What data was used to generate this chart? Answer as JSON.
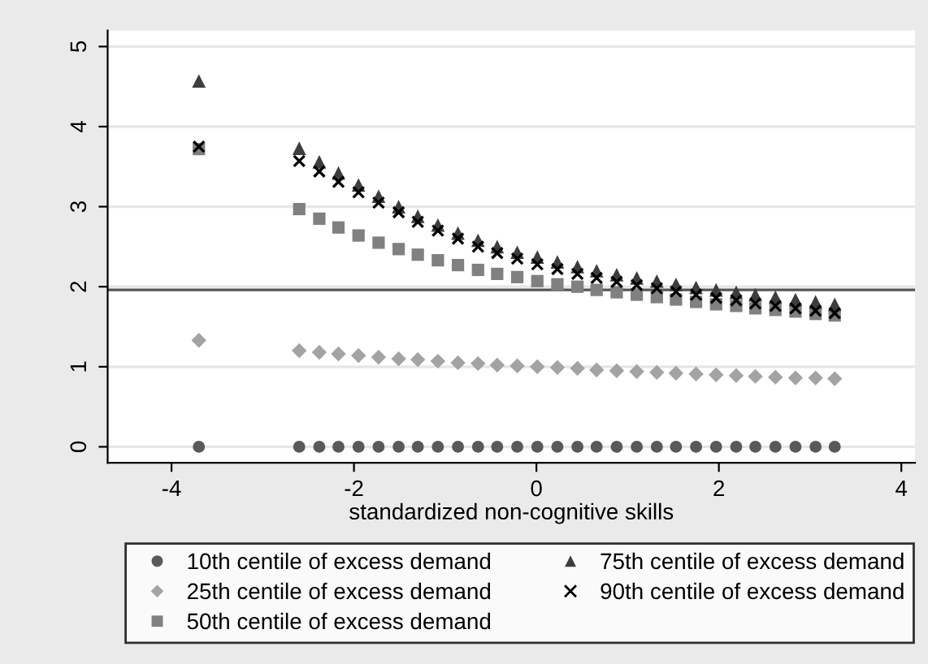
{
  "chart_data": {
    "type": "scatter",
    "xlabel": "standardized non-cognitive skills",
    "x": [
      -3.7,
      -2.6,
      -2.38,
      -2.17,
      -1.95,
      -1.73,
      -1.51,
      -1.3,
      -1.08,
      -0.86,
      -0.64,
      -0.43,
      -0.21,
      0.01,
      0.23,
      0.45,
      0.66,
      0.88,
      1.1,
      1.32,
      1.53,
      1.75,
      1.97,
      2.19,
      2.4,
      2.62,
      2.84,
      3.06,
      3.27
    ],
    "series": [
      {
        "name": "10th centile of excess demand",
        "color": "#595959",
        "marker": "circle",
        "values": [
          0,
          0,
          0,
          0,
          0,
          0,
          0,
          0,
          0,
          0,
          0,
          0,
          0,
          0,
          0,
          0,
          0,
          0,
          0,
          0,
          0,
          0,
          0,
          0,
          0,
          0,
          0,
          0,
          0
        ]
      },
      {
        "name": "25th centile of excess demand",
        "color": "#a3a3a3",
        "marker": "diamond",
        "values": [
          1.33,
          1.2,
          1.18,
          1.16,
          1.14,
          1.12,
          1.1,
          1.09,
          1.07,
          1.05,
          1.04,
          1.02,
          1.01,
          1.0,
          0.99,
          0.98,
          0.96,
          0.95,
          0.94,
          0.93,
          0.92,
          0.91,
          0.9,
          0.89,
          0.88,
          0.87,
          0.86,
          0.86,
          0.85
        ]
      },
      {
        "name": "50th centile of excess demand",
        "color": "#808080",
        "marker": "square",
        "values": [
          3.72,
          2.97,
          2.85,
          2.74,
          2.64,
          2.55,
          2.47,
          2.4,
          2.33,
          2.27,
          2.21,
          2.16,
          2.12,
          2.07,
          2.03,
          2.0,
          1.96,
          1.93,
          1.9,
          1.87,
          1.84,
          1.81,
          1.78,
          1.76,
          1.73,
          1.71,
          1.69,
          1.66,
          1.64
        ]
      },
      {
        "name": "75th centile of excess demand",
        "color": "#3d3d3d",
        "marker": "triangle",
        "values": [
          4.57,
          3.73,
          3.56,
          3.42,
          3.27,
          3.13,
          3.0,
          2.88,
          2.77,
          2.67,
          2.58,
          2.5,
          2.43,
          2.37,
          2.31,
          2.25,
          2.2,
          2.15,
          2.11,
          2.07,
          2.03,
          1.99,
          1.96,
          1.93,
          1.9,
          1.87,
          1.84,
          1.81,
          1.78
        ]
      },
      {
        "name": "90th centile of excess demand",
        "color": "#000000",
        "marker": "cross",
        "values": [
          3.75,
          3.57,
          3.44,
          3.31,
          3.18,
          3.05,
          2.93,
          2.81,
          2.7,
          2.6,
          2.5,
          2.42,
          2.35,
          2.28,
          2.22,
          2.16,
          2.11,
          2.06,
          2.02,
          1.98,
          1.94,
          1.9,
          1.86,
          1.83,
          1.79,
          1.76,
          1.73,
          1.7,
          1.67
        ]
      }
    ],
    "xlim": [
      -4.7,
      4.15
    ],
    "xticks": [
      -4,
      -2,
      0,
      2,
      4
    ],
    "ylim": [
      -0.2,
      5.2
    ],
    "yticks": [
      0,
      1,
      2,
      3,
      4,
      5
    ],
    "ref_lines": [
      {
        "axis": "y",
        "value": 1.96,
        "color": "#555555"
      }
    ],
    "grid": "y",
    "legend": "bottom"
  }
}
